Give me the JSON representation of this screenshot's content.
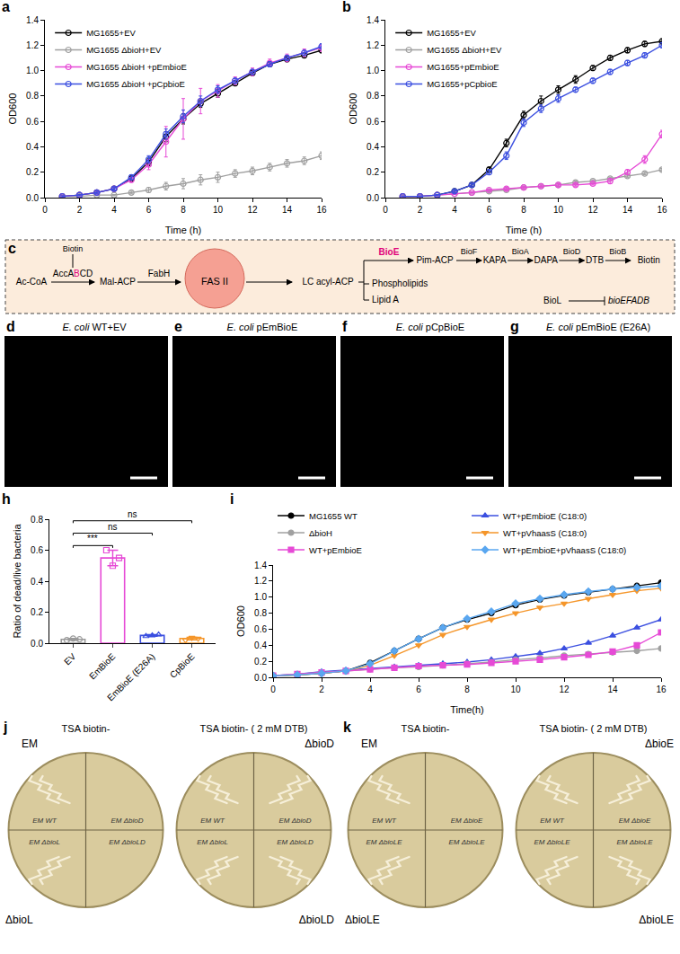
{
  "chart_data": [
    {
      "panel": "a",
      "type": "line",
      "x": [
        1,
        2,
        3,
        4,
        5,
        6,
        7,
        8,
        9,
        10,
        11,
        12,
        13,
        14,
        15,
        16
      ],
      "xlim": [
        0,
        16
      ],
      "xticks": [
        0,
        2,
        4,
        6,
        8,
        10,
        12,
        14,
        16
      ],
      "x_label": "Time (h)",
      "ylim": [
        0,
        1.4
      ],
      "yticks": [
        {
          "value": 0,
          "label": "0.0"
        },
        0.2,
        0.4,
        0.6,
        0.8,
        {
          "value": 1,
          "label": "1.0"
        },
        1.2,
        1.4
      ],
      "y_label": "OD600",
      "grid": false,
      "legend": "upper left",
      "series": [
        {
          "name": "MG1655+EV",
          "color": "#000000",
          "marker": "circle-open",
          "values": [
            0.01,
            0.02,
            0.04,
            0.07,
            0.15,
            0.28,
            0.48,
            0.62,
            0.74,
            0.82,
            0.9,
            0.98,
            1.05,
            1.09,
            1.12,
            1.16
          ],
          "errors": [
            0.005,
            0.005,
            0.01,
            0.01,
            0.02,
            0.03,
            0.04,
            0.04,
            0.03,
            0.03,
            0.02,
            0.02,
            0.02,
            0.02,
            0.02,
            0.02
          ]
        },
        {
          "name": "MG1655 ΔbioH+EV",
          "color": "#a0a0a0",
          "marker": "circle-open",
          "values": [
            0.01,
            0.01,
            0.02,
            0.02,
            0.04,
            0.06,
            0.09,
            0.11,
            0.14,
            0.16,
            0.19,
            0.21,
            0.24,
            0.27,
            0.29,
            0.33
          ],
          "errors": [
            0.003,
            0.003,
            0.005,
            0.005,
            0.01,
            0.02,
            0.03,
            0.04,
            0.04,
            0.04,
            0.03,
            0.03,
            0.03,
            0.03,
            0.03,
            0.03
          ]
        },
        {
          "name": "MG1655 ΔbioH +pEmbioE",
          "color": "#e64ad6",
          "marker": "circle-open",
          "values": [
            0.01,
            0.02,
            0.04,
            0.07,
            0.14,
            0.26,
            0.44,
            0.62,
            0.76,
            0.84,
            0.92,
            0.99,
            1.06,
            1.1,
            1.14,
            1.18
          ],
          "errors": [
            0.005,
            0.005,
            0.01,
            0.01,
            0.02,
            0.04,
            0.12,
            0.16,
            0.1,
            0.05,
            0.03,
            0.03,
            0.03,
            0.03,
            0.03,
            0.03
          ]
        },
        {
          "name": "MG1655 ΔbioH +pCpbioE",
          "color": "#3b4fe0",
          "marker": "circle-open",
          "values": [
            0.01,
            0.02,
            0.04,
            0.07,
            0.16,
            0.3,
            0.5,
            0.64,
            0.76,
            0.85,
            0.92,
            0.99,
            1.05,
            1.1,
            1.14,
            1.19
          ],
          "errors": [
            0.005,
            0.005,
            0.01,
            0.01,
            0.02,
            0.03,
            0.04,
            0.05,
            0.04,
            0.03,
            0.02,
            0.02,
            0.02,
            0.02,
            0.02,
            0.02
          ]
        }
      ]
    },
    {
      "panel": "b",
      "type": "line",
      "x": [
        1,
        2,
        3,
        4,
        5,
        6,
        7,
        8,
        9,
        10,
        11,
        12,
        13,
        14,
        15,
        16
      ],
      "xlim": [
        0,
        16
      ],
      "xticks": [
        0,
        2,
        4,
        6,
        8,
        10,
        12,
        14,
        16
      ],
      "x_label": "Time (h)",
      "ylim": [
        0,
        1.4
      ],
      "yticks": [
        {
          "value": 0,
          "label": "0.0"
        },
        0.2,
        0.4,
        0.6,
        0.8,
        {
          "value": 1,
          "label": "1.0"
        },
        1.2,
        1.4
      ],
      "y_label": "OD600",
      "grid": false,
      "legend": "upper left",
      "series": [
        {
          "name": "MG1655+EV",
          "color": "#000000",
          "marker": "circle-open",
          "values": [
            0.01,
            0.01,
            0.02,
            0.05,
            0.1,
            0.22,
            0.43,
            0.65,
            0.76,
            0.85,
            0.93,
            1.02,
            1.1,
            1.16,
            1.21,
            1.23
          ],
          "errors": [
            0.003,
            0.003,
            0.005,
            0.01,
            0.01,
            0.02,
            0.03,
            0.03,
            0.04,
            0.03,
            0.03,
            0.02,
            0.02,
            0.02,
            0.02,
            0.02
          ]
        },
        {
          "name": "MG1655 ΔbioH+EV",
          "color": "#a0a0a0",
          "marker": "circle-open",
          "values": [
            0.01,
            0.01,
            0.02,
            0.03,
            0.04,
            0.05,
            0.06,
            0.08,
            0.09,
            0.1,
            0.12,
            0.13,
            0.15,
            0.17,
            0.19,
            0.22
          ],
          "errors": [
            0.003,
            0.003,
            0.005,
            0.005,
            0.005,
            0.005,
            0.01,
            0.01,
            0.01,
            0.01,
            0.01,
            0.01,
            0.01,
            0.01,
            0.01,
            0.01
          ]
        },
        {
          "name": "MG1655+pEmbioE",
          "color": "#e64ad6",
          "marker": "circle-open",
          "values": [
            0.01,
            0.01,
            0.02,
            0.03,
            0.04,
            0.06,
            0.07,
            0.08,
            0.09,
            0.1,
            0.1,
            0.11,
            0.13,
            0.2,
            0.3,
            0.5
          ],
          "errors": [
            0.003,
            0.003,
            0.005,
            0.005,
            0.005,
            0.005,
            0.01,
            0.01,
            0.01,
            0.01,
            0.01,
            0.01,
            0.02,
            0.02,
            0.03,
            0.03
          ]
        },
        {
          "name": "MG1655+pCpbioE",
          "color": "#3b4fe0",
          "marker": "circle-open",
          "values": [
            0.01,
            0.01,
            0.02,
            0.05,
            0.1,
            0.2,
            0.33,
            0.59,
            0.7,
            0.78,
            0.85,
            0.92,
            0.99,
            1.06,
            1.12,
            1.2
          ],
          "errors": [
            0.003,
            0.003,
            0.005,
            0.01,
            0.01,
            0.02,
            0.03,
            0.03,
            0.03,
            0.03,
            0.02,
            0.02,
            0.02,
            0.02,
            0.02,
            0.02
          ]
        }
      ]
    },
    {
      "panel": "h",
      "type": "bar",
      "categories": [
        "EV",
        "EmBioE",
        "EmBioE (E26A)",
        "CpBioE"
      ],
      "values": [
        0.025,
        0.55,
        0.05,
        0.03
      ],
      "errors": [
        0.006,
        0.05,
        0.006,
        0.008
      ],
      "points": [
        [
          0.02,
          0.03,
          0.025
        ],
        [
          0.6,
          0.5,
          0.55
        ],
        [
          0.045,
          0.05,
          0.055
        ],
        [
          0.02,
          0.035,
          0.03
        ]
      ],
      "colors": [
        "#9a9a9a",
        "#e64ad6",
        "#3b4fe0",
        "#f5962a"
      ],
      "ylim": [
        0,
        0.8
      ],
      "yticks": [
        {
          "value": 0,
          "label": "0.0"
        },
        0.2,
        0.4,
        0.6,
        0.8
      ],
      "y_label": "Ratio of dead/live bacteria",
      "grid": false,
      "significance": [
        {
          "from": "EV",
          "to": "EmBioE",
          "label": "***",
          "y": 0.63
        },
        {
          "from": "EV",
          "to": "EmBioE (E26A)",
          "label": "ns",
          "y": 0.71
        },
        {
          "from": "EV",
          "to": "CpBioE",
          "label": "ns",
          "y": 0.79
        }
      ]
    },
    {
      "panel": "i",
      "type": "line",
      "x": [
        0,
        1,
        2,
        3,
        4,
        5,
        6,
        7,
        8,
        9,
        10,
        11,
        12,
        13,
        14,
        15,
        16
      ],
      "xlim": [
        0,
        16
      ],
      "xticks": [
        0,
        2,
        4,
        6,
        8,
        10,
        12,
        14,
        16
      ],
      "x_label": "Time(h)",
      "ylim": [
        0,
        1.4
      ],
      "yticks": [
        {
          "value": 0,
          "label": "0.0"
        },
        0.2,
        0.4,
        0.6,
        0.8,
        {
          "value": 1,
          "label": "1.0"
        },
        1.2,
        1.4
      ],
      "y_label": "OD600",
      "grid": false,
      "legend": "top",
      "series": [
        {
          "name": "MG1655 WT",
          "color": "#000000",
          "marker": "circle",
          "values": [
            0.02,
            0.03,
            0.05,
            0.08,
            0.18,
            0.33,
            0.48,
            0.62,
            0.72,
            0.8,
            0.9,
            0.97,
            1.02,
            1.06,
            1.1,
            1.14,
            1.18
          ]
        },
        {
          "name": "WT+pEmbioE (C18:0)",
          "color": "#3b4fe0",
          "marker": "triangle-up",
          "values": [
            0.02,
            0.04,
            0.07,
            0.09,
            0.11,
            0.13,
            0.15,
            0.17,
            0.19,
            0.22,
            0.26,
            0.3,
            0.36,
            0.43,
            0.52,
            0.62,
            0.72
          ]
        },
        {
          "name": "ΔbioH",
          "color": "#a0a0a0",
          "marker": "circle",
          "values": [
            0.02,
            0.04,
            0.06,
            0.08,
            0.1,
            0.12,
            0.13,
            0.15,
            0.17,
            0.19,
            0.22,
            0.24,
            0.27,
            0.29,
            0.31,
            0.33,
            0.36
          ]
        },
        {
          "name": "WT+pVhaasS (C18:0)",
          "color": "#f5962a",
          "marker": "triangle-down",
          "values": [
            0.02,
            0.03,
            0.05,
            0.08,
            0.15,
            0.27,
            0.4,
            0.53,
            0.63,
            0.72,
            0.8,
            0.87,
            0.92,
            0.98,
            1.03,
            1.08,
            1.11
          ]
        },
        {
          "name": "WT+pEmbioE",
          "color": "#e64ad6",
          "marker": "square",
          "values": [
            0.02,
            0.04,
            0.06,
            0.08,
            0.1,
            0.12,
            0.14,
            0.15,
            0.16,
            0.18,
            0.2,
            0.22,
            0.25,
            0.28,
            0.32,
            0.4,
            0.56
          ]
        },
        {
          "name": "WT+pEmbioE+pVhaasS (C18:0)",
          "color": "#5aa7f0",
          "marker": "diamond",
          "values": [
            0.02,
            0.03,
            0.05,
            0.08,
            0.17,
            0.33,
            0.48,
            0.62,
            0.73,
            0.82,
            0.92,
            0.98,
            1.03,
            1.07,
            1.1,
            1.12,
            1.14
          ]
        }
      ]
    }
  ],
  "diagram_c": {
    "panel": "c",
    "ac_coa": "Ac-CoA",
    "acc": "AccABCD",
    "acc_highlight": "B",
    "acc_cofactor": "Biotin",
    "mal_acp": "Mal-ACP",
    "fabh": "FabH",
    "fas": "FAS II",
    "lc_acyl": "LC acyl-ACP",
    "bioe": "BioE",
    "pim_acp": "Pim-ACP",
    "chain": [
      {
        "enzyme": "BioF",
        "product": "KAPA"
      },
      {
        "enzyme": "BioA",
        "product": "DAPA"
      },
      {
        "enzyme": "BioD",
        "product": "DTB"
      },
      {
        "enzyme": "BioB",
        "product": "Biotin"
      }
    ],
    "other_fates": [
      "Phospholipids",
      "Lipid A"
    ],
    "repressor": "BioL",
    "operon": "bioEFADB"
  },
  "micrographs": [
    {
      "panel": "d",
      "organism": "E. coli",
      "title": "WT+EV"
    },
    {
      "panel": "e",
      "organism": "E. coli",
      "title": "pEmBioE"
    },
    {
      "panel": "f",
      "organism": "E. coli",
      "title": "pCpBioE"
    },
    {
      "panel": "g",
      "organism": "E. coli",
      "title": "pEmBioE (E26A)"
    }
  ],
  "plates": [
    {
      "panel": "j",
      "corner_labels": [
        "EM",
        "ΔbioD",
        "ΔbioL",
        "ΔbioLD"
      ],
      "plates": [
        {
          "title": "TSA biotin-",
          "quadrant_texts": [
            "EM WT",
            "EM ΔbioD",
            "EM ΔbioL",
            "EM ΔbioLD"
          ],
          "growth": [
            true,
            false,
            true,
            false
          ]
        },
        {
          "title": "TSA biotin- ( 2 mM DTB)",
          "quadrant_texts": [
            "EM WT",
            "EM ΔbioD",
            "EM ΔbioL",
            "EM ΔbioLD"
          ],
          "growth": [
            true,
            true,
            true,
            true
          ]
        }
      ]
    },
    {
      "panel": "k",
      "corner_labels": [
        "EM",
        "ΔbioE",
        "ΔbioLE",
        "ΔbioLE"
      ],
      "plates": [
        {
          "title": "TSA biotin-",
          "quadrant_texts": [
            "EM WT",
            "EM ΔbioE",
            "EM ΔbioLE",
            "EM ΔbioLE"
          ],
          "growth": [
            true,
            false,
            true,
            false
          ]
        },
        {
          "title": "TSA biotin- ( 2 mM DTB)",
          "quadrant_texts": [
            "EM WT",
            "EM ΔbioE",
            "EM ΔbioLE",
            "EM ΔbioLE"
          ],
          "growth": [
            true,
            true,
            true,
            true
          ]
        }
      ]
    }
  ]
}
